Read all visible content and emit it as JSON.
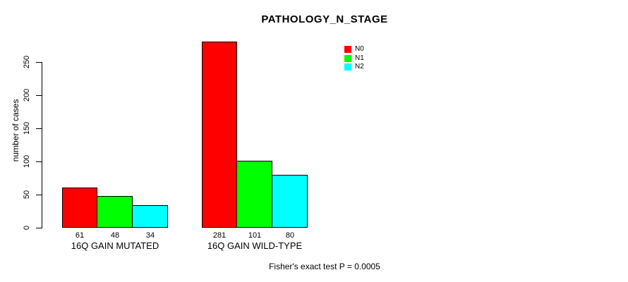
{
  "chart_data": {
    "type": "bar",
    "title": "PATHOLOGY_N_STAGE",
    "ylabel": "number of cases",
    "xlabel": "",
    "categories": [
      "16Q GAIN MUTATED",
      "16Q GAIN WILD-TYPE"
    ],
    "series": [
      {
        "name": "N0",
        "color": "#ff0000",
        "values": [
          61,
          281
        ]
      },
      {
        "name": "N1",
        "color": "#00ff00",
        "values": [
          48,
          101
        ]
      },
      {
        "name": "N2",
        "color": "#00ffff",
        "values": [
          34,
          80
        ]
      }
    ],
    "y_ticks": [
      0,
      50,
      100,
      150,
      200,
      250
    ],
    "ylim": [
      0,
      281
    ],
    "grid": false,
    "legend_position": "top-right",
    "bar_border_color": "#000000",
    "annotation": "Fisher's exact test P = 0.0005"
  }
}
